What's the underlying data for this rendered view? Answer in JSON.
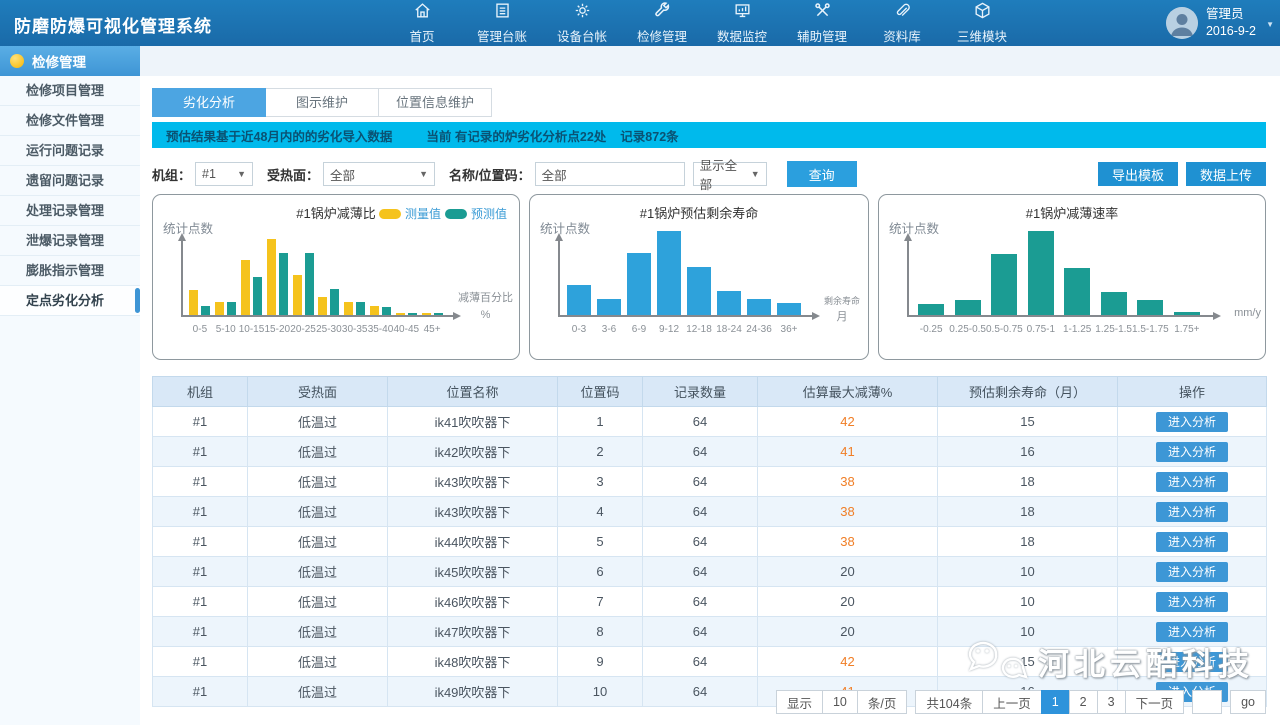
{
  "app": {
    "title": "防磨防爆可视化管理系统"
  },
  "navbar": {
    "items": [
      {
        "label": "首页",
        "icon": "home-icon"
      },
      {
        "label": "管理台账",
        "icon": "ledger-icon"
      },
      {
        "label": "设备台帐",
        "icon": "gear-icon"
      },
      {
        "label": "检修管理",
        "icon": "wrench-icon"
      },
      {
        "label": "数据监控",
        "icon": "monitor-icon"
      },
      {
        "label": "辅助管理",
        "icon": "tools-icon"
      },
      {
        "label": "资料库",
        "icon": "paperclip-icon"
      },
      {
        "label": "三维模块",
        "icon": "cube-icon"
      }
    ],
    "user": {
      "name": "管理员",
      "date": "2016-9-2"
    }
  },
  "sidebar": {
    "header": "检修管理",
    "items": [
      "检修项目管理",
      "检修文件管理",
      "运行问题记录",
      "遗留问题记录",
      "处理记录管理",
      "泄爆记录管理",
      "膨胀指示管理",
      "定点劣化分析"
    ],
    "active_index": 7
  },
  "tabs": [
    {
      "label": "劣化分析",
      "active": true
    },
    {
      "label": "图示维护",
      "active": false
    },
    {
      "label": "位置信息维护",
      "active": false
    }
  ],
  "notice": {
    "part1": "预估结果基于近48月内的的劣化导入数据",
    "part2": "当前 有记录的炉劣化分析点22处",
    "part3": "记录872条"
  },
  "filters": {
    "unit_label": "机组：",
    "unit_value": "#1",
    "surface_label": "受热面：",
    "surface_value": "全部",
    "name_label": "名称/位置码：",
    "name_value": "全部",
    "display_value": "显示全部",
    "search_button": "查询"
  },
  "actions": {
    "export_button": "导出模板",
    "upload_button": "数据上传"
  },
  "colors": {
    "accent_blue": "#2B9FDE",
    "info_bar": "#00BAEC",
    "highlight_orange": "#F07E26",
    "bar_yellow": "#F5C31D",
    "bar_teal": "#1B9C93",
    "bar_blue": "#2EA2DB"
  },
  "chart_data": [
    {
      "type": "bar",
      "title": "#1锅炉减薄比",
      "ylabel": "统计点数",
      "xlabel_line1": "减薄百分比",
      "xlabel_line2": "%",
      "categories": [
        "0-5",
        "5-10",
        "10-15",
        "15-20",
        "20-25",
        "25-30",
        "30-35",
        "35-40",
        "40-45",
        "45+"
      ],
      "series": [
        {
          "name": "测量值",
          "color": "#F5C31D",
          "values": [
            30,
            15,
            66,
            90,
            48,
            22,
            15,
            11,
            2,
            2
          ]
        },
        {
          "name": "预测值",
          "color": "#1B9C93",
          "values": [
            11,
            15,
            45,
            74,
            74,
            31,
            15,
            9,
            2,
            2
          ]
        }
      ],
      "legend_position": "top-right",
      "grid": false,
      "value_scale": "relative_percent_of_plot_height"
    },
    {
      "type": "bar",
      "title": "#1锅炉预估剩余寿命",
      "ylabel": "统计点数",
      "xlabel_line1": "剩余寿命",
      "xlabel_line2": "月",
      "categories": [
        "0-3",
        "3-6",
        "6-9",
        "9-12",
        "12-18",
        "18-24",
        "24-36",
        "36+"
      ],
      "series": [
        {
          "name": "",
          "color": "#2EA2DB",
          "values": [
            36,
            19,
            74,
            100,
            57,
            29,
            19,
            14
          ]
        }
      ],
      "grid": false,
      "value_scale": "relative_percent_of_plot_height"
    },
    {
      "type": "bar",
      "title": "#1锅炉减薄速率",
      "ylabel": "统计点数",
      "xlabel_line1": "",
      "xlabel_line2": "mm/y",
      "categories": [
        "-0.25",
        "0.25-0.5",
        "0.5-0.75",
        "0.75-1",
        "1-1.25",
        "1.25-1.5",
        "1.5-1.75",
        "1.75+"
      ],
      "series": [
        {
          "name": "",
          "color": "#1B9C93",
          "values": [
            13,
            18,
            73,
            100,
            56,
            27,
            18,
            3
          ]
        }
      ],
      "grid": false,
      "value_scale": "relative_percent_of_plot_height"
    }
  ],
  "table": {
    "columns": [
      "机组",
      "受热面",
      "位置名称",
      "位置码",
      "记录数量",
      "估算最大减薄%",
      "预估剩余寿命（月）",
      "操作"
    ],
    "rows": [
      [
        "#1",
        "低温过",
        "ik41吹吹器下",
        "1",
        "64",
        "42",
        "15"
      ],
      [
        "#1",
        "低温过",
        "ik42吹吹器下",
        "2",
        "64",
        "41",
        "16"
      ],
      [
        "#1",
        "低温过",
        "ik43吹吹器下",
        "3",
        "64",
        "38",
        "18"
      ],
      [
        "#1",
        "低温过",
        "ik43吹吹器下",
        "4",
        "64",
        "38",
        "18"
      ],
      [
        "#1",
        "低温过",
        "ik44吹吹器下",
        "5",
        "64",
        "38",
        "18"
      ],
      [
        "#1",
        "低温过",
        "ik45吹吹器下",
        "6",
        "64",
        "20",
        "10"
      ],
      [
        "#1",
        "低温过",
        "ik46吹吹器下",
        "7",
        "64",
        "20",
        "10"
      ],
      [
        "#1",
        "低温过",
        "ik47吹吹器下",
        "8",
        "64",
        "20",
        "10"
      ],
      [
        "#1",
        "低温过",
        "ik48吹吹器下",
        "9",
        "64",
        "42",
        "15"
      ],
      [
        "#1",
        "低温过",
        "ik49吹吹器下",
        "10",
        "64",
        "41",
        "16"
      ]
    ],
    "action_label": "进入分析",
    "highlight_threshold": 38
  },
  "pagination": {
    "display_label": "显示",
    "page_size": "10",
    "per_page_label": "条/页",
    "total": "共104条",
    "prev": "上一页",
    "pages": [
      "1",
      "2",
      "3"
    ],
    "active_page": "1",
    "next": "下一页",
    "goto_value": "",
    "go_label": "go"
  },
  "watermark": {
    "text": "河北云酷科技"
  }
}
